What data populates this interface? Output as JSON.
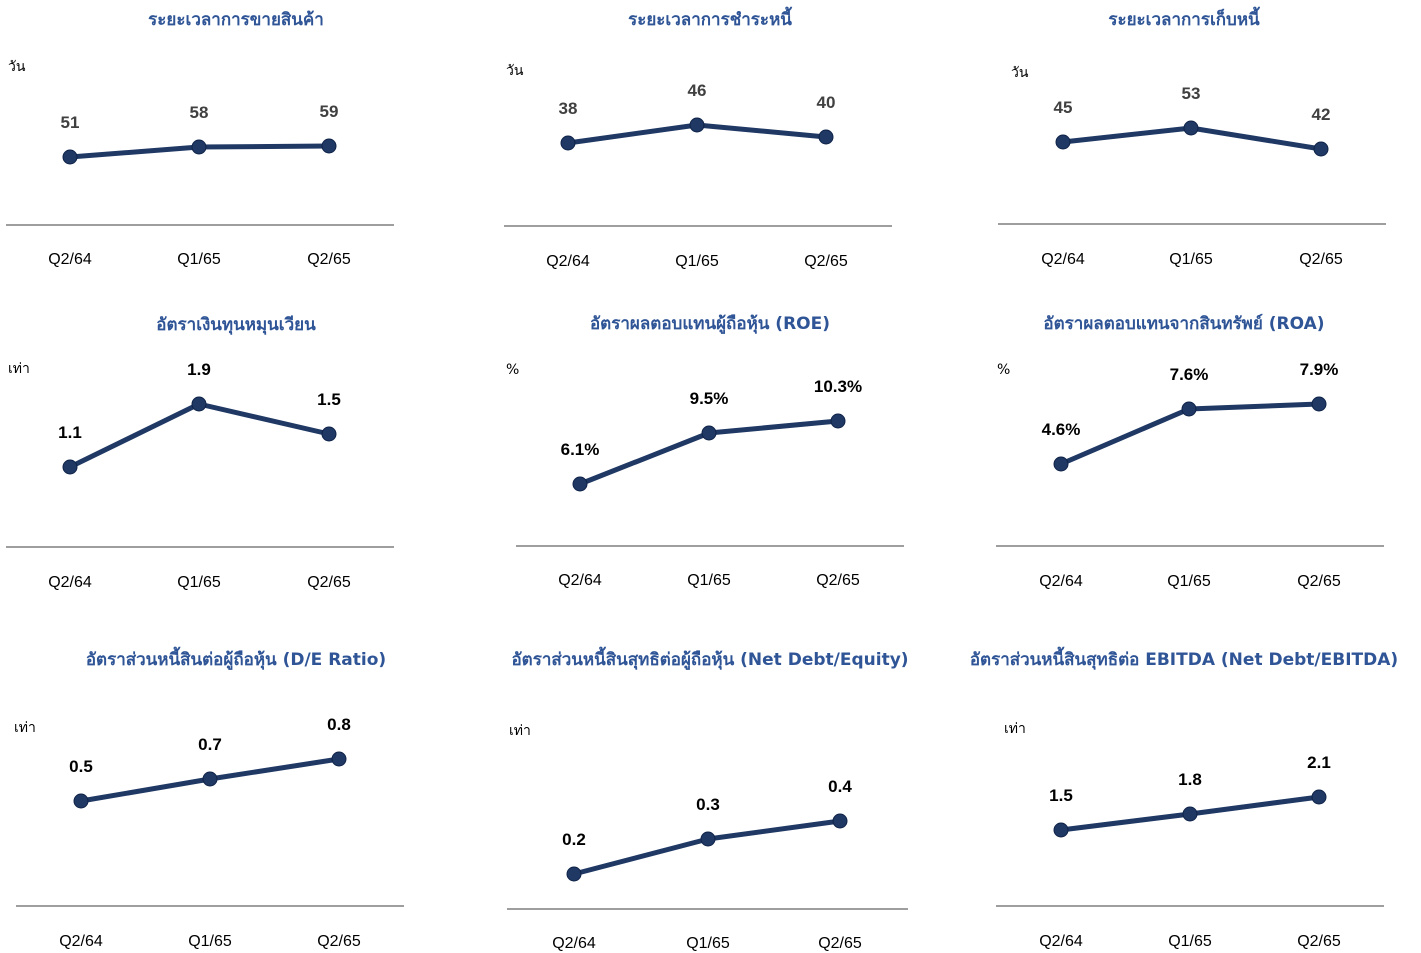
{
  "colors": {
    "line": "#1f3864",
    "marker": "#1f3864",
    "title": "#2f5597",
    "axis": "#7f7f7f"
  },
  "chart_data": [
    {
      "type": "line",
      "title": "ระยะเวลาการขายสินค้า",
      "ylabel": "วัน",
      "categories": [
        "Q2/64",
        "Q1/65",
        "Q2/65"
      ],
      "values": [
        51,
        58,
        59
      ],
      "labels": [
        "51",
        "58",
        "59"
      ],
      "label_color": "#404040",
      "ylim": [
        0,
        100
      ],
      "grid": false,
      "legend": "none"
    },
    {
      "type": "line",
      "title": "ระยะเวลาการชำระหนี้",
      "ylabel": "วัน",
      "categories": [
        "Q2/64",
        "Q1/65",
        "Q2/65"
      ],
      "values": [
        38,
        46,
        40
      ],
      "labels": [
        "38",
        "46",
        "40"
      ],
      "label_color": "#404040",
      "ylim": [
        0,
        100
      ],
      "grid": false,
      "legend": "none"
    },
    {
      "type": "line",
      "title": "ระยะเวลาการเก็บหนี้",
      "ylabel": "วัน",
      "categories": [
        "Q2/64",
        "Q1/65",
        "Q2/65"
      ],
      "values": [
        45,
        53,
        42
      ],
      "labels": [
        "45",
        "53",
        "42"
      ],
      "label_color": "#404040",
      "ylim": [
        0,
        100
      ],
      "grid": false,
      "legend": "none"
    },
    {
      "type": "line",
      "title": "อัตราเงินทุนหมุนเวียน",
      "ylabel": "เท่า",
      "categories": [
        "Q2/64",
        "Q1/65",
        "Q2/65"
      ],
      "values": [
        1.1,
        1.9,
        1.5
      ],
      "labels": [
        "1.1",
        "1.9",
        "1.5"
      ],
      "label_color": "#000000",
      "ylim": [
        0,
        3
      ],
      "grid": false,
      "legend": "none"
    },
    {
      "type": "line",
      "title": "อัตราผลตอบแทนผู้ถือหุ้น (ROE)",
      "ylabel": "%",
      "categories": [
        "Q2/64",
        "Q1/65",
        "Q2/65"
      ],
      "values": [
        6.1,
        9.5,
        10.3
      ],
      "labels": [
        "6.1%",
        "9.5%",
        "10.3%"
      ],
      "label_color": "#000000",
      "ylim": [
        0,
        15
      ],
      "grid": false,
      "legend": "none"
    },
    {
      "type": "line",
      "title": "อัตราผลตอบแทนจากสินทรัพย์ (ROA)",
      "ylabel": "%",
      "categories": [
        "Q2/64",
        "Q1/65",
        "Q2/65"
      ],
      "values": [
        4.6,
        7.6,
        7.9
      ],
      "labels": [
        "4.6%",
        "7.6%",
        "7.9%"
      ],
      "label_color": "#000000",
      "ylim": [
        0,
        10
      ],
      "grid": false,
      "legend": "none"
    },
    {
      "type": "line",
      "title": "อัตราส่วนหนี้สินต่อผู้ถือหุ้น (D/E Ratio)",
      "ylabel": "เท่า",
      "categories": [
        "Q2/64",
        "Q1/65",
        "Q2/65"
      ],
      "values": [
        0.5,
        0.7,
        0.8
      ],
      "labels": [
        "0.5",
        "0.7",
        "0.8"
      ],
      "label_color": "#000000",
      "ylim": [
        0,
        1.2
      ],
      "grid": false,
      "legend": "none"
    },
    {
      "type": "line",
      "title": "อัตราส่วนหนี้สินสุทธิต่อผู้ถือหุ้น (Net Debt/Equity)",
      "ylabel": "เท่า",
      "categories": [
        "Q2/64",
        "Q1/65",
        "Q2/65"
      ],
      "values": [
        0.2,
        0.3,
        0.4
      ],
      "labels": [
        "0.2",
        "0.3",
        "0.4"
      ],
      "label_color": "#000000",
      "ylim": [
        0,
        0.8
      ],
      "grid": false,
      "legend": "none"
    },
    {
      "type": "line",
      "title": "อัตราส่วนหนี้สินสุทธิต่อ EBITDA (Net Debt/EBITDA)",
      "ylabel": "เท่า",
      "categories": [
        "Q2/64",
        "Q1/65",
        "Q2/65"
      ],
      "values": [
        1.5,
        1.8,
        2.1
      ],
      "labels": [
        "1.5",
        "1.8",
        "2.1"
      ],
      "label_color": "#000000",
      "ylim": [
        0,
        4
      ],
      "grid": false,
      "legend": "none"
    }
  ]
}
